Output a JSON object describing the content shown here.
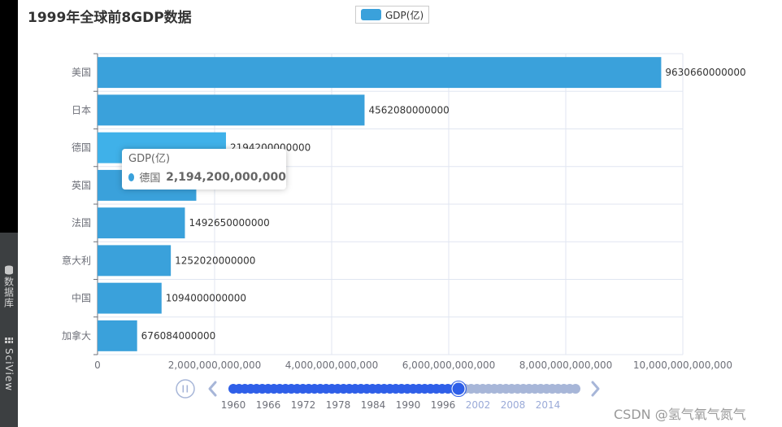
{
  "chart_data": {
    "type": "bar",
    "orientation": "horizontal",
    "title": "1999年全球前8GDP数据",
    "legend": {
      "items": [
        "GDP(亿)"
      ],
      "placement": "top-center"
    },
    "categories": [
      "美国",
      "日本",
      "德国",
      "英国",
      "法国",
      "意大利",
      "中国",
      "加拿大"
    ],
    "series": [
      {
        "name": "GDP(亿)",
        "values": [
          9630660000000,
          4562080000000,
          2194200000000,
          1687000000000,
          1492650000000,
          1252020000000,
          1094000000000,
          676084000000
        ]
      }
    ],
    "value_labels": [
      "9630660000000",
      "4562080000000",
      "2194200000000",
      "",
      "1492650000000",
      "1252020000000",
      "1094000000000",
      "676084000000"
    ],
    "xlim": [
      0,
      10000000000000
    ],
    "x_ticks": [
      0,
      2000000000000,
      4000000000000,
      6000000000000,
      8000000000000,
      10000000000000
    ],
    "x_tick_labels": [
      "0",
      "2,000,000,000,000",
      "4,000,000,000,000",
      "6,000,000,000,000",
      "8,000,000,000,000",
      "10,000,000,000,000"
    ],
    "grid": true,
    "colors": {
      "bar": "#3aa1db",
      "bar_highlight": "#3fb1e9"
    },
    "highlighted_index": 2
  },
  "tooltip": {
    "series_name": "GDP(亿)",
    "name": "德国",
    "value": "2,194,200,000,000"
  },
  "timeline": {
    "years": [
      "1960",
      "1966",
      "1972",
      "1978",
      "1984",
      "1990",
      "1996",
      "2002",
      "2008",
      "2014"
    ],
    "current_fraction": 0.658,
    "colors": {
      "active": "#2f5fe8",
      "inactive": "#a7b6d8",
      "label_active": "#6e7079",
      "label_inactive": "#9aaad8"
    }
  },
  "sidebar": {
    "tools": [
      "数据库",
      "SciView"
    ]
  },
  "watermark": "CSDN @氢气氧气氮气"
}
